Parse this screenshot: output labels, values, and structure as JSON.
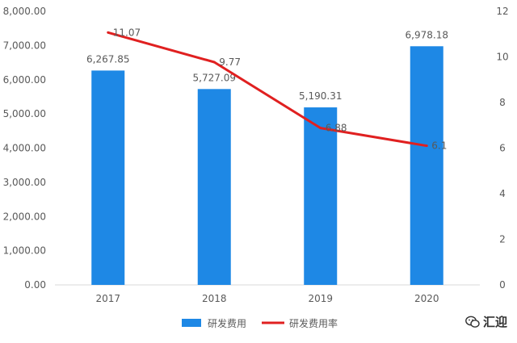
{
  "chart_data": {
    "type": "bar+line",
    "categories": [
      "2017",
      "2018",
      "2019",
      "2020"
    ],
    "series": [
      {
        "name": "研发费用",
        "type": "bar",
        "axis": "left",
        "color": "#1E88E5",
        "values": [
          6267.85,
          5727.09,
          5190.31,
          6978.18
        ],
        "labels": [
          "6,267.85",
          "5,727.09",
          "5,190.31",
          "6,978.18"
        ]
      },
      {
        "name": "研发费用率",
        "type": "line",
        "axis": "right",
        "color": "#E02020",
        "values": [
          11.07,
          9.77,
          6.88,
          6.1
        ],
        "labels": [
          "11.07",
          "9.77",
          "6.88",
          "6.1"
        ]
      }
    ],
    "y_left": {
      "min": 0,
      "max": 8000,
      "ticks": [
        "0.00",
        "1,000.00",
        "2,000.00",
        "3,000.00",
        "4,000.00",
        "5,000.00",
        "6,000.00",
        "7,000.00",
        "8,000.00"
      ]
    },
    "y_right": {
      "min": 0,
      "max": 12,
      "ticks": [
        "0",
        "2",
        "4",
        "6",
        "8",
        "10",
        "12"
      ]
    },
    "grid": false,
    "legend_position": "bottom"
  },
  "watermark": {
    "text": "汇迎",
    "icon": "wechat-icon"
  }
}
